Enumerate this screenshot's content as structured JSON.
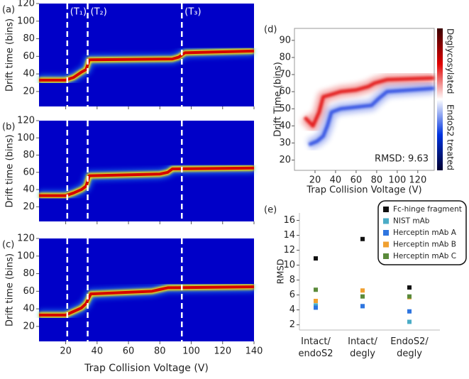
{
  "chart_data": [
    {
      "type": "heatmap",
      "label": "(a)",
      "ylabel": "Drift time (bins)",
      "background": "#0000c8",
      "xlim": [
        3,
        140
      ],
      "xticks": [
        20,
        40,
        60,
        80,
        100,
        120,
        140
      ],
      "ylim": [
        3,
        120
      ],
      "yticks": [
        20,
        40,
        60,
        80,
        100,
        120
      ],
      "vlines": [
        {
          "value": 21,
          "label": "(T₁)"
        },
        {
          "value": 34,
          "label": "(T₂)"
        },
        {
          "value": 94,
          "label": "(T₃)"
        }
      ],
      "series": [
        {
          "color": "#d40000",
          "x": [
            3,
            20,
            25,
            30,
            33,
            35,
            88,
            92,
            96,
            140
          ],
          "values": [
            33,
            33,
            36,
            42,
            45,
            56,
            57,
            59,
            64,
            66
          ]
        }
      ]
    },
    {
      "type": "heatmap",
      "label": "(b)",
      "ylabel": "Drift time (bins)",
      "background": "#0000c8",
      "xlim": [
        3,
        140
      ],
      "xticks": [
        20,
        40,
        60,
        80,
        100,
        120,
        140
      ],
      "ylim": [
        3,
        120
      ],
      "yticks": [
        20,
        40,
        60,
        80,
        100,
        120
      ],
      "vlines": [
        21,
        34,
        94
      ],
      "series": [
        {
          "color": "#d40000",
          "x": [
            3,
            20,
            25,
            30,
            33,
            35,
            80,
            85,
            88,
            140
          ],
          "values": [
            33,
            33,
            36,
            40,
            44,
            56,
            58,
            60,
            64,
            65
          ]
        }
      ]
    },
    {
      "type": "heatmap",
      "label": "(c)",
      "ylabel": "Drift time (bins)",
      "xlabel": "Trap Collision Voltage (V)",
      "background": "#0000c8",
      "xlim": [
        3,
        140
      ],
      "xticks": [
        20,
        40,
        60,
        80,
        100,
        120,
        140
      ],
      "ylim": [
        3,
        120
      ],
      "yticks": [
        20,
        40,
        60,
        80,
        100,
        120
      ],
      "vlines": [
        21,
        34,
        94
      ],
      "series": [
        {
          "color": "#d40000",
          "x": [
            3,
            20,
            25,
            30,
            33,
            36,
            75,
            80,
            85,
            140
          ],
          "values": [
            33,
            33,
            37,
            41,
            46,
            57,
            60,
            62,
            64,
            65
          ]
        }
      ]
    },
    {
      "type": "difference",
      "label": "(d)",
      "ylabel": "Drift Time (bins)",
      "xlabel": "Trap Collision Voltage (V)",
      "annotation": "RMSD: 9.63",
      "xlim": [
        0,
        136
      ],
      "xticks": [
        20,
        40,
        60,
        80,
        100,
        120
      ],
      "ylim": [
        14,
        97
      ],
      "yticks": [
        20,
        30,
        40,
        50,
        60,
        70,
        80,
        90
      ],
      "colorbar": {
        "top_label": "Deglycosylated",
        "bottom_label": "EndoS2 treated",
        "colors": [
          "#3a0000",
          "#e00000",
          "#ffffff",
          "#0033e0",
          "#000030"
        ]
      },
      "series": [
        {
          "color": "#e00000",
          "x": [
            10,
            18,
            24,
            28,
            34,
            45,
            60,
            72,
            78,
            90,
            136
          ],
          "values": [
            45,
            40,
            48,
            57,
            58,
            60,
            61,
            63,
            65,
            67,
            68
          ]
        },
        {
          "color": "#1a40e0",
          "x": [
            14,
            22,
            28,
            32,
            36,
            45,
            60,
            75,
            82,
            90,
            136
          ],
          "values": [
            29,
            31,
            34,
            40,
            48,
            50,
            51,
            52,
            56,
            60,
            62
          ]
        }
      ]
    },
    {
      "type": "scatter",
      "label": "(e)",
      "ylabel": "RMSD",
      "categories": [
        "Intact/ endoS2",
        "Intact/ degly",
        "EndoS2/ degly"
      ],
      "ylim": [
        1.3,
        17
      ],
      "yticks": [
        2,
        4,
        6,
        8,
        10,
        12,
        14,
        16
      ],
      "series": [
        {
          "name": "Fc-hinge fragment",
          "color": "#111111",
          "values": [
            10.9,
            13.5,
            7.0
          ]
        },
        {
          "name": "NIST mAb",
          "color": "#4bacc6",
          "values": [
            4.6,
            4.5,
            2.4
          ]
        },
        {
          "name": "Herceptin mAb A",
          "color": "#2e75e0",
          "values": [
            4.3,
            4.5,
            3.8
          ]
        },
        {
          "name": "Herceptin mAb B",
          "color": "#f0a030",
          "values": [
            5.2,
            6.6,
            5.7
          ]
        },
        {
          "name": "Herceptin mAb C",
          "color": "#5a8a3a",
          "values": [
            6.7,
            5.8,
            5.8
          ]
        }
      ]
    }
  ]
}
